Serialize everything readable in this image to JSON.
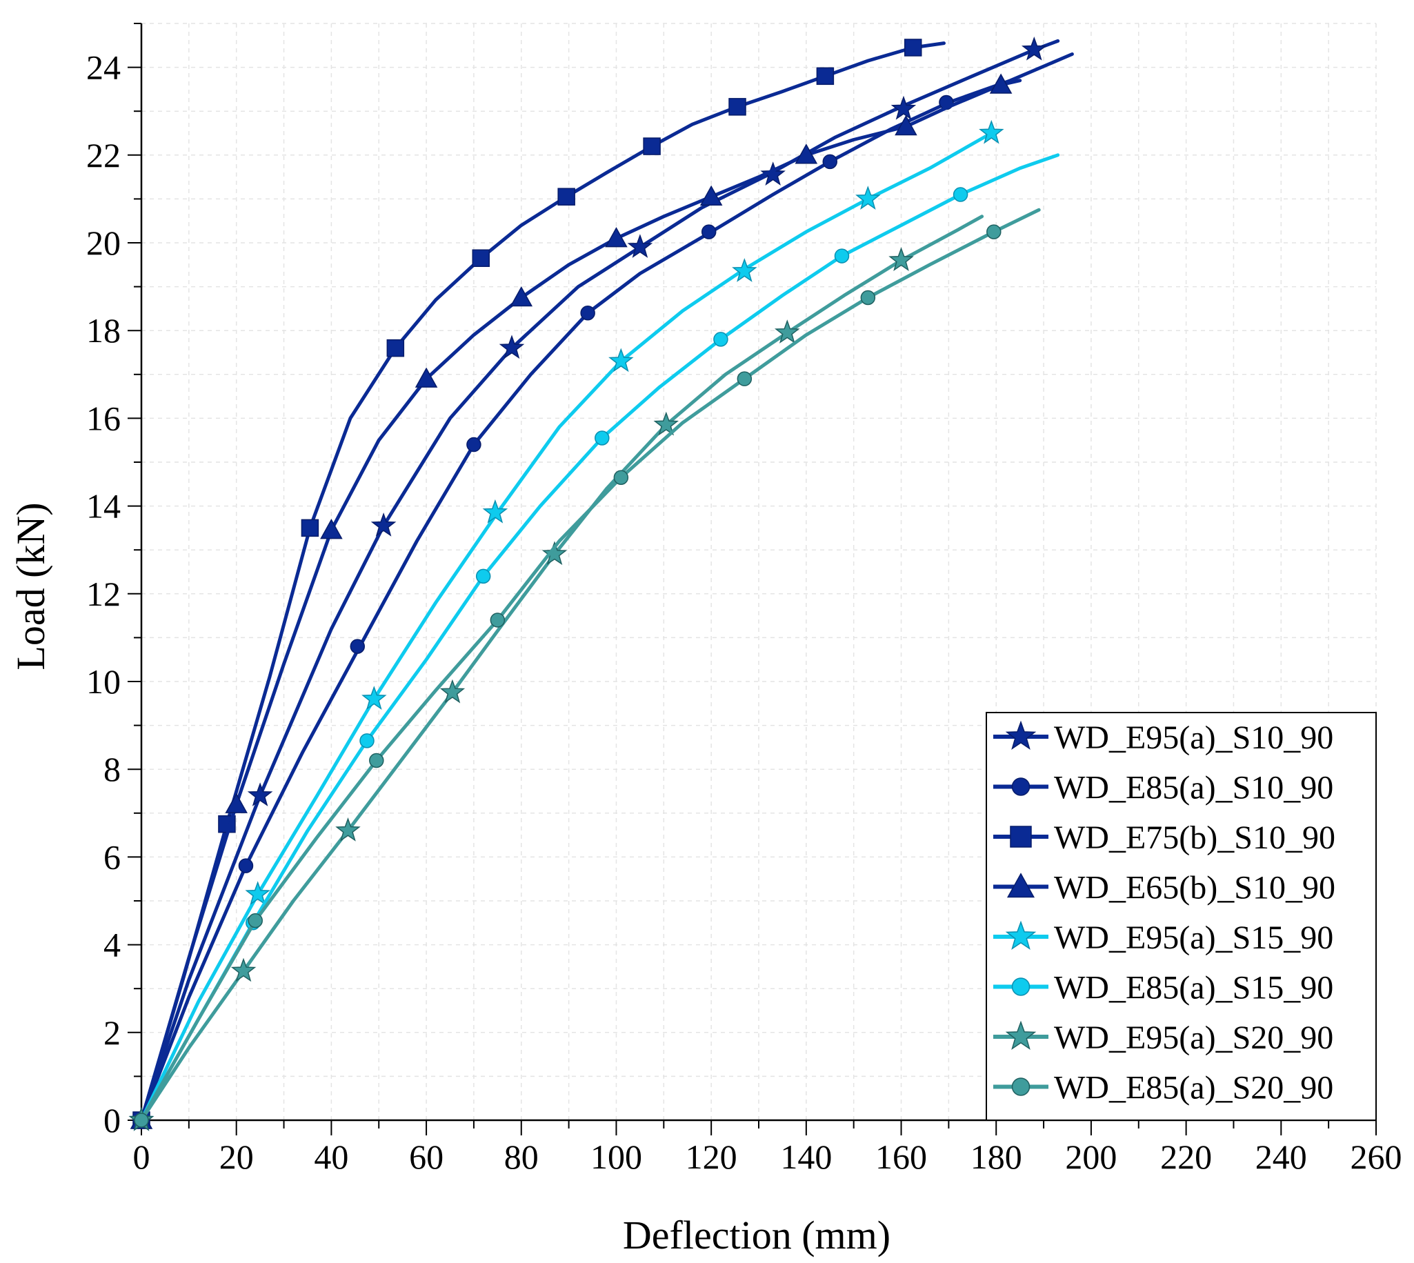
{
  "chart_data": {
    "type": "line",
    "title": "",
    "xlabel": "Deflection (mm)",
    "ylabel": "Load (kN)",
    "xlim": [
      0,
      260
    ],
    "ylim": [
      0,
      25
    ],
    "xticks": [
      "0",
      "20",
      "40",
      "60",
      "80",
      "100",
      "120",
      "140",
      "160",
      "180",
      "200",
      "220",
      "240",
      "260"
    ],
    "yticks": [
      "0",
      "2",
      "4",
      "6",
      "8",
      "10",
      "12",
      "14",
      "16",
      "18",
      "20",
      "22",
      "24"
    ],
    "grid": true,
    "legend_position": "bottom-right",
    "series": [
      {
        "name": "WD_E95(a)_S10_90",
        "color": "#0a2a94",
        "marker": "star",
        "markerFill": "#0a2a94",
        "points": [
          [
            0,
            0
          ],
          [
            10,
            3.2
          ],
          [
            25,
            7.4
          ],
          [
            40,
            11.2
          ],
          [
            51,
            13.55
          ],
          [
            65,
            16.0
          ],
          [
            78,
            17.6
          ],
          [
            92,
            19.0
          ],
          [
            105,
            19.9
          ],
          [
            118,
            20.8
          ],
          [
            132,
            21.55
          ],
          [
            146,
            22.4
          ],
          [
            160,
            23.1
          ],
          [
            175,
            23.8
          ],
          [
            188,
            24.4
          ],
          [
            193,
            24.6
          ]
        ],
        "markers": [
          [
            0,
            0
          ],
          [
            25,
            7.4
          ],
          [
            51,
            13.55
          ],
          [
            78,
            17.6
          ],
          [
            105,
            19.9
          ],
          [
            133,
            21.55
          ],
          [
            160.5,
            23.05
          ],
          [
            188,
            24.4
          ]
        ]
      },
      {
        "name": "WD_E85(a)_S10_90",
        "color": "#0a2a94",
        "marker": "circle",
        "markerFill": "#0a2a94",
        "points": [
          [
            0,
            0
          ],
          [
            10,
            2.8
          ],
          [
            22,
            5.8
          ],
          [
            34,
            8.4
          ],
          [
            46,
            10.8
          ],
          [
            58,
            13.2
          ],
          [
            70,
            15.4
          ],
          [
            82,
            17.0
          ],
          [
            94,
            18.4
          ],
          [
            105,
            19.3
          ],
          [
            120,
            20.25
          ],
          [
            133,
            21.1
          ],
          [
            145,
            21.85
          ],
          [
            158,
            22.6
          ],
          [
            170,
            23.2
          ],
          [
            183,
            23.7
          ],
          [
            196,
            24.3
          ]
        ],
        "markers": [
          [
            0,
            0
          ],
          [
            22,
            5.8
          ],
          [
            45.5,
            10.8
          ],
          [
            70,
            15.4
          ],
          [
            94,
            18.4
          ],
          [
            119.5,
            20.25
          ],
          [
            145,
            21.85
          ],
          [
            169.5,
            23.2
          ]
        ]
      },
      {
        "name": "WD_E75(b)_S10_90",
        "color": "#0a2a94",
        "marker": "square",
        "markerFill": "#0a2a94",
        "points": [
          [
            0,
            0
          ],
          [
            9,
            3.3
          ],
          [
            18,
            6.75
          ],
          [
            27,
            10.1
          ],
          [
            35.5,
            13.5
          ],
          [
            44,
            16.0
          ],
          [
            53.5,
            17.6
          ],
          [
            62,
            18.7
          ],
          [
            71.5,
            19.65
          ],
          [
            80,
            20.4
          ],
          [
            89.5,
            21.05
          ],
          [
            98,
            21.6
          ],
          [
            107.5,
            22.2
          ],
          [
            116,
            22.7
          ],
          [
            125.5,
            23.1
          ],
          [
            135,
            23.45
          ],
          [
            144,
            23.8
          ],
          [
            153,
            24.15
          ],
          [
            162.5,
            24.45
          ],
          [
            169,
            24.55
          ]
        ],
        "markers": [
          [
            0,
            0
          ],
          [
            18,
            6.75
          ],
          [
            35.5,
            13.5
          ],
          [
            53.5,
            17.6
          ],
          [
            71.5,
            19.65
          ],
          [
            89.5,
            21.05
          ],
          [
            107.5,
            22.2
          ],
          [
            125.5,
            23.1
          ],
          [
            144,
            23.8
          ],
          [
            162.5,
            24.45
          ]
        ]
      },
      {
        "name": "WD_E65(b)_S10_90",
        "color": "#0a2a94",
        "marker": "triangle",
        "markerFill": "#0a2a94",
        "points": [
          [
            0,
            0
          ],
          [
            10,
            3.7
          ],
          [
            20,
            7.2
          ],
          [
            30,
            10.4
          ],
          [
            40,
            13.45
          ],
          [
            50,
            15.5
          ],
          [
            60,
            16.9
          ],
          [
            70,
            17.9
          ],
          [
            80,
            18.75
          ],
          [
            90,
            19.5
          ],
          [
            100,
            20.1
          ],
          [
            110,
            20.6
          ],
          [
            120,
            21.05
          ],
          [
            130,
            21.5
          ],
          [
            140,
            22.0
          ],
          [
            150,
            22.35
          ],
          [
            161,
            22.65
          ],
          [
            170,
            23.1
          ],
          [
            181,
            23.6
          ],
          [
            185,
            23.7
          ]
        ],
        "markers": [
          [
            0,
            0
          ],
          [
            20,
            7.2
          ],
          [
            40,
            13.45
          ],
          [
            60,
            16.9
          ],
          [
            80,
            18.75
          ],
          [
            100,
            20.1
          ],
          [
            120,
            21.05
          ],
          [
            140,
            22.0
          ],
          [
            161,
            22.65
          ],
          [
            181,
            23.6
          ]
        ]
      },
      {
        "name": "WD_E95(a)_S15_90",
        "color": "#0ecbee",
        "marker": "star",
        "markerFill": "#0ecbee",
        "points": [
          [
            0,
            0
          ],
          [
            12,
            2.7
          ],
          [
            24.5,
            5.15
          ],
          [
            37,
            7.4
          ],
          [
            49,
            9.6
          ],
          [
            62,
            11.8
          ],
          [
            75,
            13.85
          ],
          [
            88,
            15.8
          ],
          [
            101,
            17.3
          ],
          [
            114,
            18.45
          ],
          [
            127,
            19.4
          ],
          [
            140,
            20.25
          ],
          [
            153,
            21.0
          ],
          [
            166,
            21.7
          ],
          [
            179,
            22.5
          ]
        ],
        "markers": [
          [
            0,
            0
          ],
          [
            24.5,
            5.15
          ],
          [
            49,
            9.6
          ],
          [
            74.5,
            13.85
          ],
          [
            101,
            17.3
          ],
          [
            127,
            19.35
          ],
          [
            153,
            21.0
          ],
          [
            179,
            22.5
          ]
        ]
      },
      {
        "name": "WD_E85(a)_S15_90",
        "color": "#0ecbee",
        "marker": "circle",
        "markerFill": "#0ecbee",
        "points": [
          [
            0,
            0
          ],
          [
            12,
            2.3
          ],
          [
            23.5,
            4.5
          ],
          [
            35,
            6.6
          ],
          [
            47.5,
            8.65
          ],
          [
            60,
            10.5
          ],
          [
            72,
            12.4
          ],
          [
            84,
            14.0
          ],
          [
            97,
            15.55
          ],
          [
            109,
            16.7
          ],
          [
            122,
            17.8
          ],
          [
            135,
            18.8
          ],
          [
            147.5,
            19.7
          ],
          [
            160,
            20.4
          ],
          [
            172.5,
            21.1
          ],
          [
            185,
            21.7
          ],
          [
            193,
            22.0
          ]
        ],
        "markers": [
          [
            0,
            0
          ],
          [
            23.5,
            4.5
          ],
          [
            47.5,
            8.65
          ],
          [
            72,
            12.4
          ],
          [
            97,
            15.55
          ],
          [
            122,
            17.8
          ],
          [
            147.5,
            19.7
          ],
          [
            172.5,
            21.1
          ]
        ]
      },
      {
        "name": "WD_E95(a)_S20_90",
        "color": "#3f9c9c",
        "marker": "star",
        "markerFill": "#3f9c9c",
        "points": [
          [
            0,
            0
          ],
          [
            10,
            1.65
          ],
          [
            21.5,
            3.4
          ],
          [
            32,
            5.0
          ],
          [
            43.5,
            6.6
          ],
          [
            54,
            8.1
          ],
          [
            65.5,
            9.75
          ],
          [
            76,
            11.3
          ],
          [
            87,
            12.9
          ],
          [
            98,
            14.4
          ],
          [
            110.5,
            15.85
          ],
          [
            123,
            17.0
          ],
          [
            136,
            17.95
          ],
          [
            148,
            18.8
          ],
          [
            160,
            19.6
          ],
          [
            172,
            20.3
          ],
          [
            177,
            20.6
          ]
        ],
        "markers": [
          [
            0,
            0
          ],
          [
            21.5,
            3.4
          ],
          [
            43.5,
            6.6
          ],
          [
            65.5,
            9.75
          ],
          [
            87,
            12.9
          ],
          [
            110.5,
            15.85
          ],
          [
            136,
            17.95
          ],
          [
            160,
            19.6
          ]
        ]
      },
      {
        "name": "WD_E85(a)_S20_90",
        "color": "#3f9c9c",
        "marker": "circle",
        "markerFill": "#3f9c9c",
        "points": [
          [
            0,
            0
          ],
          [
            12,
            2.3
          ],
          [
            24,
            4.55
          ],
          [
            37,
            6.45
          ],
          [
            49.5,
            8.2
          ],
          [
            62,
            9.8
          ],
          [
            75,
            11.4
          ],
          [
            88,
            13.2
          ],
          [
            101,
            14.65
          ],
          [
            114,
            15.9
          ],
          [
            127,
            16.9
          ],
          [
            140,
            17.9
          ],
          [
            153,
            18.75
          ],
          [
            166,
            19.5
          ],
          [
            179.5,
            20.25
          ],
          [
            189,
            20.75
          ]
        ],
        "markers": [
          [
            0,
            0
          ],
          [
            24,
            4.55
          ],
          [
            49.5,
            8.2
          ],
          [
            75,
            11.4
          ],
          [
            101,
            14.65
          ],
          [
            127,
            16.9
          ],
          [
            153,
            18.75
          ],
          [
            179.5,
            20.25
          ]
        ]
      }
    ]
  }
}
